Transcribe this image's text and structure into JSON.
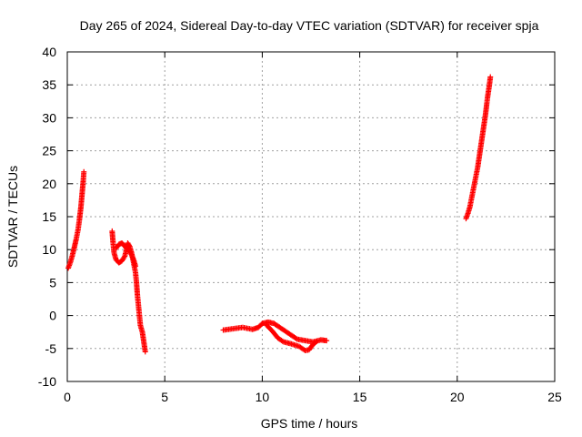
{
  "chart_data": {
    "type": "scatter",
    "title": "Day 265 of 2024, Sidereal Day-to-day VTEC variation (SDTVAR) for receiver spja",
    "xlabel": "GPS time / hours",
    "ylabel": "SDTVAR / TECUs",
    "xlim": [
      0,
      25
    ],
    "ylim": [
      -10,
      40
    ],
    "xticks": [
      0,
      5,
      10,
      15,
      20,
      25
    ],
    "yticks": [
      -10,
      -5,
      0,
      5,
      10,
      15,
      20,
      25,
      30,
      35,
      40
    ],
    "grid": true,
    "marker": "+",
    "color": "#ff0000",
    "series": [
      {
        "name": "SDTVAR",
        "segments": [
          [
            [
              0.05,
              7.2
            ],
            [
              0.15,
              8.0
            ],
            [
              0.25,
              9.0
            ],
            [
              0.35,
              10.2
            ],
            [
              0.45,
              11.5
            ],
            [
              0.55,
              13.0
            ],
            [
              0.62,
              14.5
            ],
            [
              0.7,
              16.5
            ],
            [
              0.76,
              18.5
            ],
            [
              0.82,
              20.5
            ],
            [
              0.85,
              21.8
            ]
          ],
          [
            [
              2.3,
              12.8
            ],
            [
              2.35,
              11.0
            ],
            [
              2.4,
              9.5
            ],
            [
              2.5,
              8.5
            ],
            [
              2.65,
              8.0
            ],
            [
              2.8,
              8.3
            ],
            [
              2.95,
              9.0
            ],
            [
              3.05,
              10.2
            ],
            [
              3.1,
              11.0
            ],
            [
              3.2,
              10.5
            ],
            [
              3.3,
              9.5
            ],
            [
              3.4,
              8.0
            ],
            [
              3.5,
              6.5
            ],
            [
              3.55,
              5.0
            ],
            [
              3.6,
              3.0
            ],
            [
              3.65,
              1.5
            ],
            [
              3.7,
              0.0
            ],
            [
              3.75,
              -1.5
            ],
            [
              3.85,
              -2.5
            ],
            [
              3.9,
              -3.5
            ],
            [
              3.95,
              -4.5
            ],
            [
              4.0,
              -5.5
            ]
          ],
          [
            [
              2.5,
              10.2
            ],
            [
              2.65,
              10.8
            ],
            [
              2.8,
              11.0
            ],
            [
              2.95,
              10.5
            ],
            [
              3.1,
              10.0
            ],
            [
              3.25,
              9.5
            ],
            [
              3.4,
              8.5
            ],
            [
              3.5,
              7.5
            ]
          ],
          [
            [
              8.0,
              -2.2
            ],
            [
              8.5,
              -2.0
            ],
            [
              9.0,
              -1.8
            ],
            [
              9.5,
              -2.1
            ],
            [
              9.8,
              -1.8
            ],
            [
              10.0,
              -1.2
            ],
            [
              10.3,
              -1.0
            ],
            [
              10.6,
              -1.2
            ],
            [
              11.0,
              -2.0
            ],
            [
              11.4,
              -2.8
            ],
            [
              11.8,
              -3.6
            ],
            [
              12.2,
              -3.8
            ],
            [
              12.6,
              -4.0
            ],
            [
              13.0,
              -3.7
            ],
            [
              13.3,
              -3.8
            ]
          ],
          [
            [
              10.2,
              -1.4
            ],
            [
              10.5,
              -2.3
            ],
            [
              10.8,
              -3.4
            ],
            [
              11.1,
              -4.0
            ],
            [
              11.5,
              -4.3
            ],
            [
              11.9,
              -4.7
            ],
            [
              12.2,
              -5.3
            ],
            [
              12.4,
              -5.2
            ],
            [
              12.6,
              -4.4
            ],
            [
              12.8,
              -3.9
            ]
          ],
          [
            [
              20.45,
              14.7
            ],
            [
              20.55,
              15.5
            ],
            [
              20.65,
              16.5
            ],
            [
              20.75,
              18.0
            ],
            [
              20.85,
              19.5
            ],
            [
              20.95,
              21.0
            ],
            [
              21.05,
              22.5
            ],
            [
              21.15,
              24.5
            ],
            [
              21.25,
              26.5
            ],
            [
              21.35,
              28.5
            ],
            [
              21.45,
              30.5
            ],
            [
              21.55,
              33.0
            ],
            [
              21.65,
              35.0
            ],
            [
              21.7,
              36.2
            ]
          ]
        ]
      }
    ]
  }
}
